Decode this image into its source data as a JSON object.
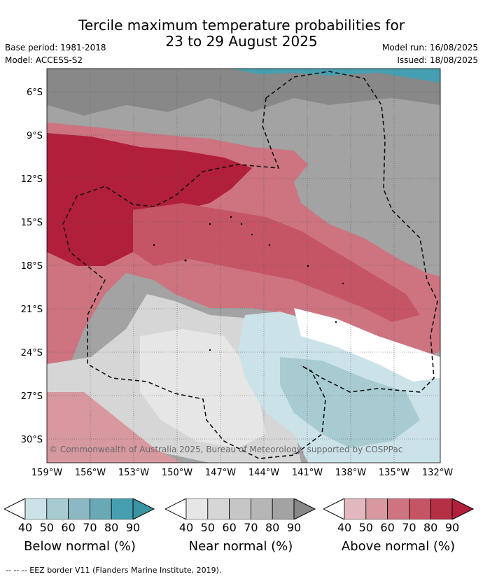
{
  "header": {
    "title_line1": "Tercile maximum temperature probabilities for",
    "title_line2": "23 to 29 August 2025",
    "base_period": "Base period: 1981-2018",
    "model": "Model: ACCESS-S2",
    "model_run": "Model run: 16/08/2025",
    "issued": "Issued: 18/08/2025"
  },
  "map": {
    "lat_labels": [
      "6°S",
      "9°S",
      "12°S",
      "15°S",
      "18°S",
      "21°S",
      "24°S",
      "27°S",
      "30°S"
    ],
    "lon_labels": [
      "159°W",
      "156°W",
      "153°W",
      "150°W",
      "147°W",
      "144°W",
      "141°W",
      "138°W",
      "135°W",
      "132°W"
    ],
    "copyright": "© Commonwealth of Australia 2025, Bureau of Meteorology, supported by COSPPac"
  },
  "legend": {
    "below": {
      "label": "Below normal (%)",
      "ticks": [
        "40",
        "50",
        "60",
        "70",
        "80",
        "90"
      ],
      "colors": [
        "#cbe2e8",
        "#a8cbd2",
        "#8bb9c3",
        "#69a9b6",
        "#469fb0",
        "#3a93a3"
      ]
    },
    "near": {
      "label": "Near normal (%)",
      "ticks": [
        "40",
        "50",
        "60",
        "70",
        "80",
        "90"
      ],
      "colors": [
        "#e6e6e6",
        "#d6d6d6",
        "#c6c6c6",
        "#b6b6b6",
        "#a3a3a3",
        "#888888"
      ]
    },
    "above": {
      "label": "Above normal (%)",
      "ticks": [
        "40",
        "50",
        "60",
        "70",
        "80",
        "90"
      ],
      "colors": [
        "#e2b8be",
        "#d7989f",
        "#cd7480",
        "#c55565",
        "#b52f45",
        "#b21f3a"
      ]
    },
    "footnote": "--  --  -- EEZ border V11 (Flanders Marine Institute, 2019)."
  }
}
